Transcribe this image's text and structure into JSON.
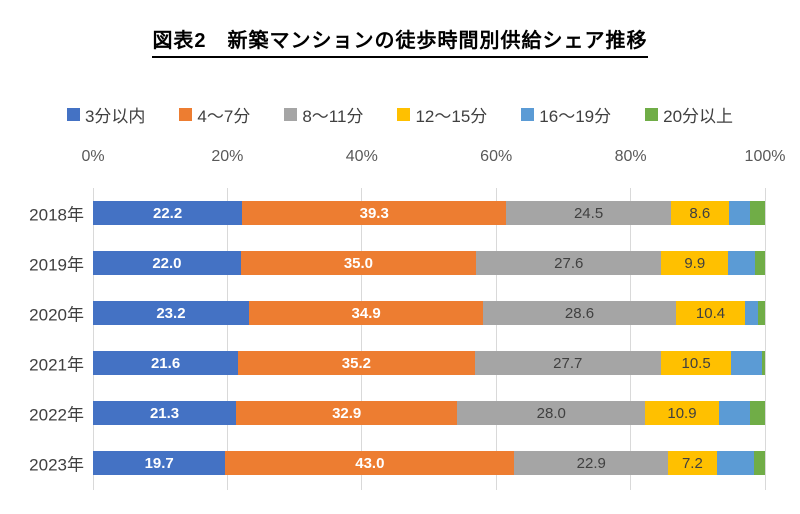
{
  "title": "図表2　新築マンションの徒歩時間別供給シェア推移",
  "chart_data": {
    "type": "bar",
    "subtype": "horizontal-stacked",
    "unit": "%",
    "categories": [
      "2018年",
      "2019年",
      "2020年",
      "2021年",
      "2022年",
      "2023年"
    ],
    "series": [
      {
        "name": "3分以内",
        "color": "#4472C4",
        "values": [
          22.2,
          22.0,
          23.2,
          21.6,
          21.3,
          19.7
        ],
        "labels": [
          "22.2",
          "22.0",
          "23.2",
          "21.6",
          "21.3",
          "19.7"
        ],
        "label_style": "light"
      },
      {
        "name": "4～7分",
        "color": "#ED7D31",
        "values": [
          39.3,
          35.0,
          34.9,
          35.2,
          32.9,
          43.0
        ],
        "labels": [
          "39.3",
          "35.0",
          "34.9",
          "35.2",
          "32.9",
          "43.0"
        ],
        "label_style": "light"
      },
      {
        "name": "8～11分",
        "color": "#A5A5A5",
        "values": [
          24.5,
          27.6,
          28.6,
          27.7,
          28.0,
          22.9
        ],
        "labels": [
          "24.5",
          "27.6",
          "28.6",
          "27.7",
          "28.0",
          "22.9"
        ],
        "label_style": "dark"
      },
      {
        "name": "12～15分",
        "color": "#FFC000",
        "values": [
          8.6,
          9.9,
          10.4,
          10.5,
          10.9,
          7.2
        ],
        "labels": [
          "8.6",
          "9.9",
          "10.4",
          "10.5",
          "10.9",
          "7.2"
        ],
        "label_style": "dark"
      },
      {
        "name": "16～19分",
        "color": "#5B9BD5",
        "values": [
          3.2,
          4.0,
          1.8,
          4.6,
          4.7,
          5.5
        ],
        "labels": null,
        "label_style": "dark"
      },
      {
        "name": "20分以上",
        "color": "#70AD47",
        "values": [
          2.2,
          1.5,
          1.1,
          0.4,
          2.2,
          1.7
        ],
        "labels": null,
        "label_style": "dark"
      }
    ],
    "xlabel": "",
    "ylabel": "",
    "xlim": [
      0,
      100
    ],
    "xticklabels": [
      "0%",
      "20%",
      "40%",
      "60%",
      "80%",
      "100%"
    ],
    "grid": "vertical",
    "legend_position": "top",
    "gridline_color": "#D9D9D9"
  }
}
